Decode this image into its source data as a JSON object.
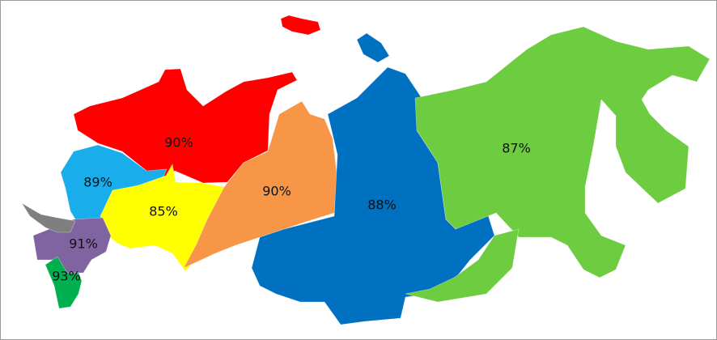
{
  "regions": [
    {
      "id": "northwest",
      "label": "90%",
      "color": "#FF0000"
    },
    {
      "id": "central",
      "label": "89%",
      "color": "#1AADEC"
    },
    {
      "id": "volga",
      "label": "85%",
      "color": "#FFFF00"
    },
    {
      "id": "ural",
      "label": "90%",
      "color": "#F79646"
    },
    {
      "id": "siberia",
      "label": "88%",
      "color": "#0070C0"
    },
    {
      "id": "far-east",
      "label": "87%",
      "color": "#6DCC3F"
    },
    {
      "id": "southern",
      "label": "91%",
      "color": "#8064A2"
    },
    {
      "id": "north-caucasus",
      "label": "93%",
      "color": "#00B050"
    },
    {
      "id": "crimea",
      "label": "",
      "color": "#7F7F7F"
    }
  ]
}
